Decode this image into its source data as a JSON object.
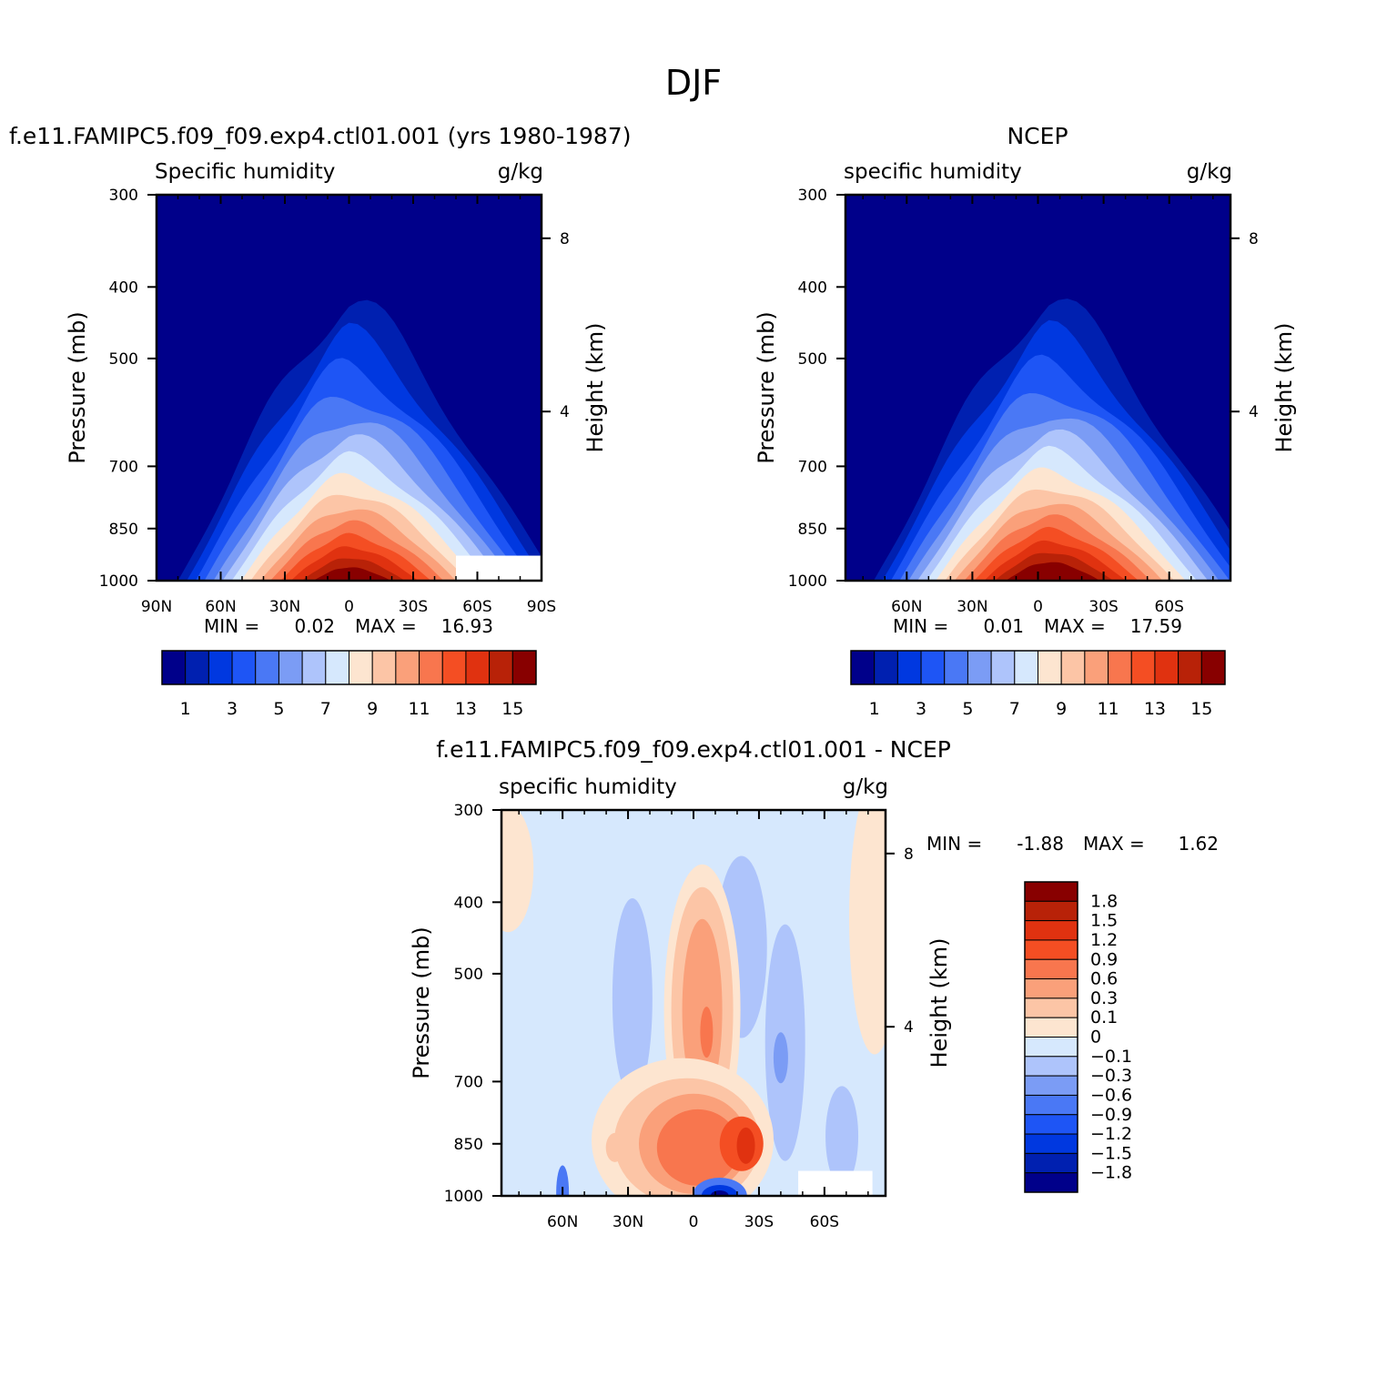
{
  "page_title": "DJF",
  "palettes": {
    "humidity": [
      "#00008a",
      "#0020b0",
      "#0038e0",
      "#1e55f5",
      "#4a78f5",
      "#7b9cf5",
      "#aec4fb",
      "#d6e8fd",
      "#fde5d0",
      "#fcc5a6",
      "#faa07a",
      "#f8764e",
      "#f44e23",
      "#e03210",
      "#b82208",
      "#880000"
    ],
    "difference": [
      "#880000",
      "#b82208",
      "#e03210",
      "#f44e23",
      "#f8764e",
      "#faa07a",
      "#fcc5a6",
      "#fde5d0",
      "#d6e8fd",
      "#aec4fb",
      "#7b9cf5",
      "#4a78f5",
      "#1e55f5",
      "#0038e0",
      "#0020b0",
      "#00008a"
    ]
  },
  "chart_data": [
    {
      "type": "heatmap",
      "panel_title": "f.e11.FAMIPC5.f09_f09.exp4.ctl01.001 (yrs 1980-1987)",
      "title": "Specific humidity",
      "units": "g/kg",
      "ylabel": "Pressure (mb)",
      "y2label": "Height (km)",
      "x_ticks": [
        "90N",
        "60N",
        "30N",
        "0",
        "30S",
        "60S",
        "90S"
      ],
      "x_tick_values": [
        90,
        60,
        30,
        0,
        -30,
        -60,
        -90
      ],
      "y_ticks": [
        "300",
        "400",
        "500",
        "700",
        "850",
        "1000"
      ],
      "y_tick_values": [
        300,
        400,
        500,
        700,
        850,
        1000
      ],
      "y2_ticks": [
        "8",
        "4"
      ],
      "y2_tick_values": [
        8,
        4
      ],
      "xlim": [
        90,
        -90
      ],
      "ylim": [
        1000,
        300
      ],
      "y_scale": "log",
      "min_label": "MIN =",
      "min_value": "0.02",
      "max_label": "MAX =",
      "max_value": "16.93",
      "peak_latitude": 0,
      "peak_value": 16.93,
      "missing_region": {
        "lat_from": -50,
        "lat_to": -90,
        "p_from": 925
      },
      "colorbar": {
        "labels": [
          "1",
          "3",
          "5",
          "7",
          "9",
          "11",
          "13",
          "15"
        ],
        "levels": [
          1,
          2,
          3,
          4,
          5,
          6,
          7,
          8,
          9,
          10,
          11,
          12,
          13,
          14,
          15
        ]
      }
    },
    {
      "type": "heatmap",
      "panel_title": "NCEP",
      "title": "specific humidity",
      "units": "g/kg",
      "ylabel": "Pressure (mb)",
      "y2label": "Height (km)",
      "x_ticks": [
        "60N",
        "30N",
        "0",
        "30S",
        "60S"
      ],
      "x_tick_values": [
        60,
        30,
        0,
        -30,
        -60
      ],
      "y_ticks": [
        "300",
        "400",
        "500",
        "700",
        "850",
        "1000"
      ],
      "y_tick_values": [
        300,
        400,
        500,
        700,
        850,
        1000
      ],
      "y2_ticks": [
        "8",
        "4"
      ],
      "y2_tick_values": [
        8,
        4
      ],
      "xlim": [
        88,
        -88
      ],
      "ylim": [
        1000,
        300
      ],
      "y_scale": "log",
      "min_label": "MIN =",
      "min_value": "0.01",
      "max_label": "MAX =",
      "max_value": "17.59",
      "peak_latitude": -5,
      "peak_value": 17.59,
      "colorbar": {
        "labels": [
          "1",
          "3",
          "5",
          "7",
          "9",
          "11",
          "13",
          "15"
        ],
        "levels": [
          1,
          2,
          3,
          4,
          5,
          6,
          7,
          8,
          9,
          10,
          11,
          12,
          13,
          14,
          15
        ]
      }
    },
    {
      "type": "heatmap",
      "panel_title": "f.e11.FAMIPC5.f09_f09.exp4.ctl01.001 - NCEP",
      "title": "specific humidity",
      "units": "g/kg",
      "ylabel": "Pressure (mb)",
      "y2label": "Height (km)",
      "x_ticks": [
        "60N",
        "30N",
        "0",
        "30S",
        "60S"
      ],
      "x_tick_values": [
        60,
        30,
        0,
        -30,
        -60
      ],
      "y_ticks": [
        "300",
        "400",
        "500",
        "700",
        "850",
        "1000"
      ],
      "y_tick_values": [
        300,
        400,
        500,
        700,
        850,
        1000
      ],
      "y2_ticks": [
        "8",
        "4"
      ],
      "y2_tick_values": [
        8,
        4
      ],
      "xlim": [
        88,
        -88
      ],
      "ylim": [
        1000,
        300
      ],
      "y_scale": "log",
      "min_label": "MIN =",
      "min_value": "-1.88",
      "max_label": "MAX =",
      "max_value": "1.62",
      "missing_region": {
        "lat_from": -48,
        "lat_to": -82,
        "p_from": 925
      },
      "colorbar": {
        "labels": [
          "1.8",
          "1.5",
          "1.2",
          "0.9",
          "0.6",
          "0.3",
          "0.1",
          "0",
          "-0.1",
          "-0.3",
          "-0.6",
          "-0.9",
          "-1.2",
          "-1.5",
          "-1.8"
        ],
        "levels": [
          1.8,
          1.5,
          1.2,
          0.9,
          0.6,
          0.3,
          0.1,
          0,
          -0.1,
          -0.3,
          -0.6,
          -0.9,
          -1.2,
          -1.5,
          -1.8
        ]
      }
    }
  ]
}
